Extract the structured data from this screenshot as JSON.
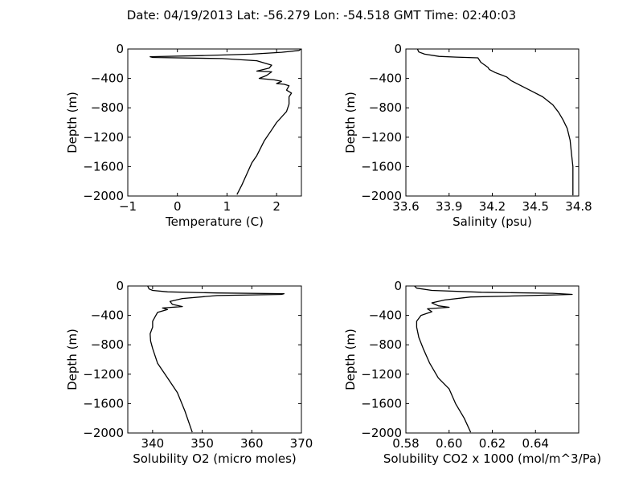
{
  "title": "Date: 04/19/2013  Lat:  -56.279 Lon:  -54.518  GMT Time: 02:40:03",
  "chart_data": [
    {
      "type": "line",
      "xlabel": "Temperature (C)",
      "ylabel": "Depth (m)",
      "xlim": [
        -1,
        2.5
      ],
      "ylim": [
        -2000,
        0
      ],
      "xticks": [
        -1,
        0,
        1,
        2
      ],
      "xtick_labels": [
        "−1",
        "0",
        "1",
        "2"
      ],
      "yticks": [
        0,
        -400,
        -800,
        -1200,
        -1600,
        -2000
      ],
      "ytick_labels": [
        "0",
        "−400",
        "−800",
        "−1200",
        "−1600",
        "−2000"
      ],
      "grid": false,
      "x": [
        2.5,
        2.45,
        2.1,
        1.5,
        0.5,
        -0.55,
        -0.5,
        0.9,
        1.6,
        1.9,
        1.85,
        1.6,
        1.9,
        1.8,
        1.65,
        1.95,
        2.1,
        2.0,
        2.15,
        2.25,
        2.2,
        2.3,
        2.25,
        2.25,
        2.2,
        2.0,
        1.9,
        1.75,
        1.6,
        1.5,
        1.4,
        1.3,
        1.2
      ],
      "y": [
        0,
        -20,
        -45,
        -70,
        -90,
        -105,
        -115,
        -130,
        -160,
        -220,
        -260,
        -300,
        -310,
        -360,
        -400,
        -420,
        -440,
        -470,
        -480,
        -500,
        -560,
        -600,
        -650,
        -750,
        -850,
        -1000,
        -1100,
        -1250,
        -1450,
        -1550,
        -1700,
        -1850,
        -1980
      ]
    },
    {
      "type": "line",
      "xlabel": "Salinity (psu)",
      "ylabel": "Depth (m)",
      "xlim": [
        33.6,
        34.8
      ],
      "ylim": [
        -2000,
        0
      ],
      "xticks": [
        33.6,
        33.9,
        34.2,
        34.5,
        34.8
      ],
      "xtick_labels": [
        "33.6",
        "33.9",
        "34.2",
        "34.5",
        "34.8"
      ],
      "yticks": [
        0,
        -400,
        -800,
        -1200,
        -1600,
        -2000
      ],
      "ytick_labels": [
        "0",
        "−400",
        "−800",
        "−1200",
        "−1600",
        "−2000"
      ],
      "grid": false,
      "x": [
        33.68,
        33.69,
        33.73,
        33.83,
        33.95,
        34.1,
        34.12,
        34.17,
        34.18,
        34.22,
        34.26,
        34.3,
        34.33,
        34.38,
        34.42,
        34.48,
        34.55,
        34.62,
        34.66,
        34.69,
        34.72,
        34.74,
        34.75,
        34.76,
        34.76
      ],
      "y": [
        0,
        -40,
        -70,
        -100,
        -110,
        -120,
        -180,
        -250,
        -280,
        -320,
        -350,
        -380,
        -430,
        -480,
        -520,
        -580,
        -650,
        -760,
        -860,
        -960,
        -1080,
        -1240,
        -1420,
        -1600,
        -1990
      ]
    },
    {
      "type": "line",
      "xlabel": "Solubility O2 (micro moles)",
      "ylabel": "Depth (m)",
      "xlim": [
        335,
        370
      ],
      "ylim": [
        -2000,
        0
      ],
      "xticks": [
        340,
        350,
        360,
        370
      ],
      "xtick_labels": [
        "340",
        "350",
        "360",
        "370"
      ],
      "yticks": [
        0,
        -400,
        -800,
        -1200,
        -1600,
        -2000
      ],
      "ytick_labels": [
        "0",
        "−400",
        "−800",
        "−1200",
        "−1600",
        "−2000"
      ],
      "grid": false,
      "x": [
        339,
        339.3,
        340,
        343,
        353,
        366.5,
        366,
        353,
        346,
        343.5,
        344,
        346,
        342,
        343,
        341,
        340.5,
        340,
        340,
        339.5,
        339.6,
        340,
        341,
        343,
        345,
        346.5,
        348
      ],
      "y": [
        0,
        -40,
        -60,
        -80,
        -95,
        -105,
        -115,
        -130,
        -170,
        -210,
        -250,
        -280,
        -300,
        -320,
        -360,
        -420,
        -480,
        -560,
        -650,
        -750,
        -850,
        -1050,
        -1250,
        -1450,
        -1700,
        -1990
      ]
    },
    {
      "type": "line",
      "xlabel": "Solubility CO2 x 1000 (mol/m^3/Pa)",
      "ylabel": "Depth (m)",
      "xlim": [
        0.58,
        0.66
      ],
      "ylim": [
        -2000,
        0
      ],
      "xticks": [
        0.58,
        0.6,
        0.62,
        0.64
      ],
      "xtick_labels": [
        "0.58",
        "0.60",
        "0.62",
        "0.64"
      ],
      "yticks": [
        0,
        -400,
        -800,
        -1200,
        -1600,
        -2000
      ],
      "ytick_labels": [
        "0",
        "−400",
        "−800",
        "−1200",
        "−1600",
        "−2000"
      ],
      "grid": false,
      "x": [
        0.584,
        0.585,
        0.592,
        0.615,
        0.648,
        0.657,
        0.645,
        0.61,
        0.598,
        0.592,
        0.595,
        0.6,
        0.59,
        0.592,
        0.587,
        0.585,
        0.585,
        0.586,
        0.588,
        0.591,
        0.595,
        0.6,
        0.603,
        0.607,
        0.61
      ],
      "y": [
        0,
        -30,
        -60,
        -85,
        -100,
        -115,
        -125,
        -150,
        -190,
        -230,
        -270,
        -290,
        -310,
        -350,
        -400,
        -480,
        -560,
        -700,
        -850,
        -1050,
        -1250,
        -1400,
        -1600,
        -1800,
        -1990
      ]
    }
  ]
}
